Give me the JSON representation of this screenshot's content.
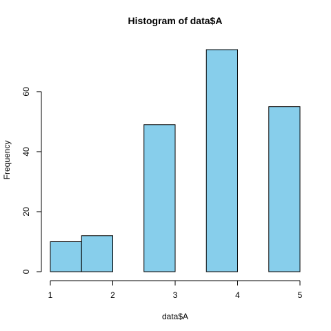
{
  "chart_data": {
    "type": "bar",
    "title": "Histogram of data$A",
    "xlabel": "data$A",
    "ylabel": "Frequency",
    "bins": [
      {
        "start": 1.0,
        "end": 1.5,
        "count": 10
      },
      {
        "start": 1.5,
        "end": 2.0,
        "count": 12
      },
      {
        "start": 2.0,
        "end": 2.5,
        "count": 0
      },
      {
        "start": 2.5,
        "end": 3.0,
        "count": 49
      },
      {
        "start": 3.0,
        "end": 3.5,
        "count": 0
      },
      {
        "start": 3.5,
        "end": 4.0,
        "count": 74
      },
      {
        "start": 4.0,
        "end": 4.5,
        "count": 0
      },
      {
        "start": 4.5,
        "end": 5.0,
        "count": 55
      }
    ],
    "xlim": [
      1,
      5
    ],
    "ylim": [
      0,
      74
    ],
    "x_ticks": [
      1,
      2,
      3,
      4,
      5
    ],
    "y_ticks": [
      0,
      20,
      40,
      60
    ],
    "bar_color": "#87CEEB",
    "grid": false,
    "legend": "none"
  }
}
